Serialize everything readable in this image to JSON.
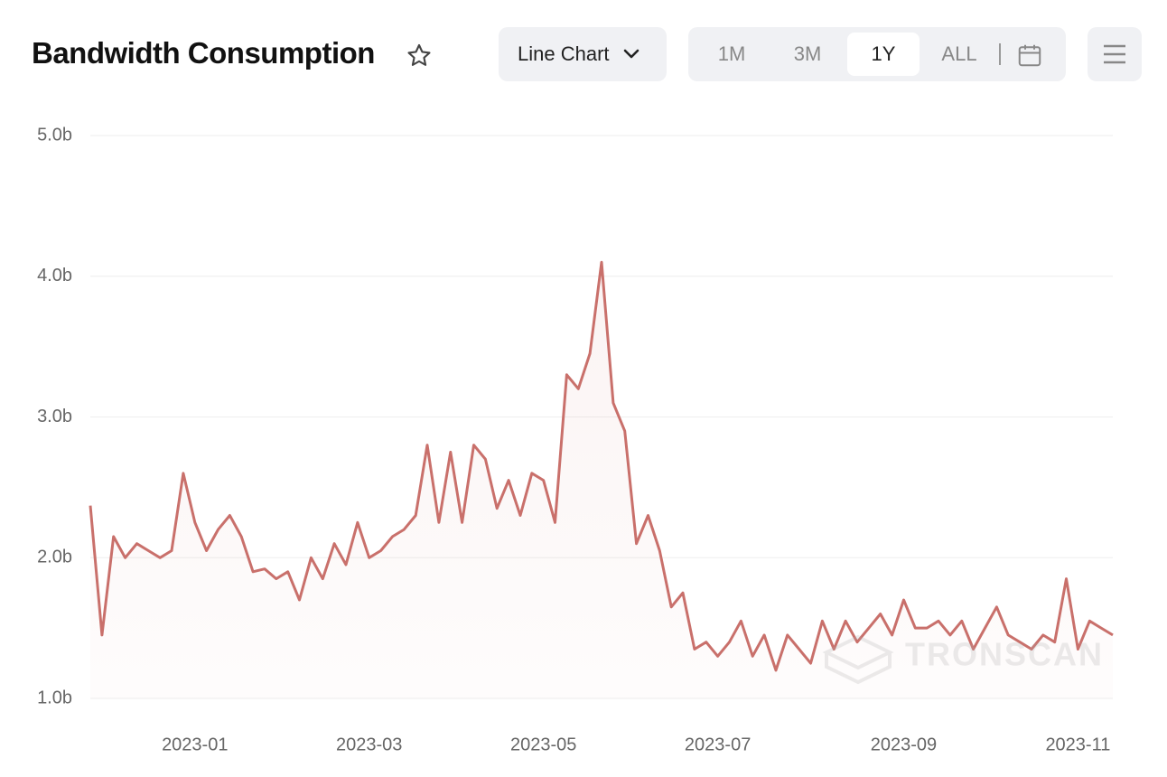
{
  "chart_data": {
    "type": "line",
    "title": "Bandwidth Consumption",
    "categories": [
      null,
      null,
      null,
      null,
      null,
      null,
      null,
      null,
      null,
      "2023-01",
      null,
      null,
      null,
      null,
      null,
      null,
      null,
      null,
      null,
      null,
      null,
      null,
      null,
      null,
      "2023-03",
      null,
      null,
      null,
      null,
      null,
      null,
      null,
      null,
      null,
      null,
      null,
      null,
      null,
      null,
      "2023-05",
      null,
      null,
      null,
      null,
      null,
      null,
      null,
      null,
      null,
      null,
      null,
      null,
      null,
      null,
      "2023-07",
      null,
      null,
      null,
      null,
      null,
      null,
      null,
      null,
      null,
      null,
      null,
      null,
      null,
      null,
      null,
      "2023-09",
      null,
      null,
      null,
      null,
      null,
      null,
      null,
      null,
      null,
      null,
      null,
      null,
      null,
      null,
      "2023-11",
      null,
      null,
      null
    ],
    "series": [
      {
        "name": "Bandwidth Consumption",
        "color": "#c9706b",
        "values": [
          2370000000.0,
          1450000000.0,
          2150000000.0,
          2000000000.0,
          2100000000.0,
          2050000000.0,
          2000000000.0,
          2050000000.0,
          2600000000.0,
          2250000000.0,
          2050000000.0,
          2200000000.0,
          2300000000.0,
          2150000000.0,
          1900000000.0,
          1920000000.0,
          1850000000.0,
          1900000000.0,
          1700000000.0,
          2000000000.0,
          1850000000.0,
          2100000000.0,
          1950000000.0,
          2250000000.0,
          2000000000.0,
          2050000000.0,
          2150000000.0,
          2200000000.0,
          2300000000.0,
          2800000000.0,
          2250000000.0,
          2750000000.0,
          2250000000.0,
          2800000000.0,
          2700000000.0,
          2350000000.0,
          2550000000.0,
          2300000000.0,
          2600000000.0,
          2550000000.0,
          2250000000.0,
          3300000000.0,
          3200000000.0,
          3450000000.0,
          4100000000.0,
          3100000000.0,
          2900000000.0,
          2100000000.0,
          2300000000.0,
          2050000000.0,
          1650000000.0,
          1750000000.0,
          1350000000.0,
          1400000000.0,
          1300000000.0,
          1400000000.0,
          1550000000.0,
          1300000000.0,
          1450000000.0,
          1200000000.0,
          1450000000.0,
          1350000000.0,
          1250000000.0,
          1550000000.0,
          1350000000.0,
          1550000000.0,
          1400000000.0,
          1500000000.0,
          1600000000.0,
          1450000000.0,
          1700000000.0,
          1500000000.0,
          1500000000.0,
          1550000000.0,
          1450000000.0,
          1550000000.0,
          1350000000.0,
          1500000000.0,
          1650000000.0,
          1450000000.0,
          1400000000.0,
          1350000000.0,
          1450000000.0,
          1400000000.0,
          1850000000.0,
          1350000000.0,
          1550000000.0,
          1500000000.0,
          1450000000.0
        ]
      }
    ],
    "ylim": [
      1000000000.0,
      5000000000.0
    ],
    "yticks": [
      {
        "value": 1000000000.0,
        "label": "1.0b"
      },
      {
        "value": 2000000000.0,
        "label": "2.0b"
      },
      {
        "value": 3000000000.0,
        "label": "3.0b"
      },
      {
        "value": 4000000000.0,
        "label": "4.0b"
      },
      {
        "value": 5000000000.0,
        "label": "5.0b"
      }
    ],
    "grid": true,
    "watermark": "TRONSCAN"
  },
  "controls": {
    "chart_type": "Line Chart",
    "ranges": [
      "1M",
      "3M",
      "1Y",
      "ALL"
    ],
    "selected_range": "1Y"
  }
}
